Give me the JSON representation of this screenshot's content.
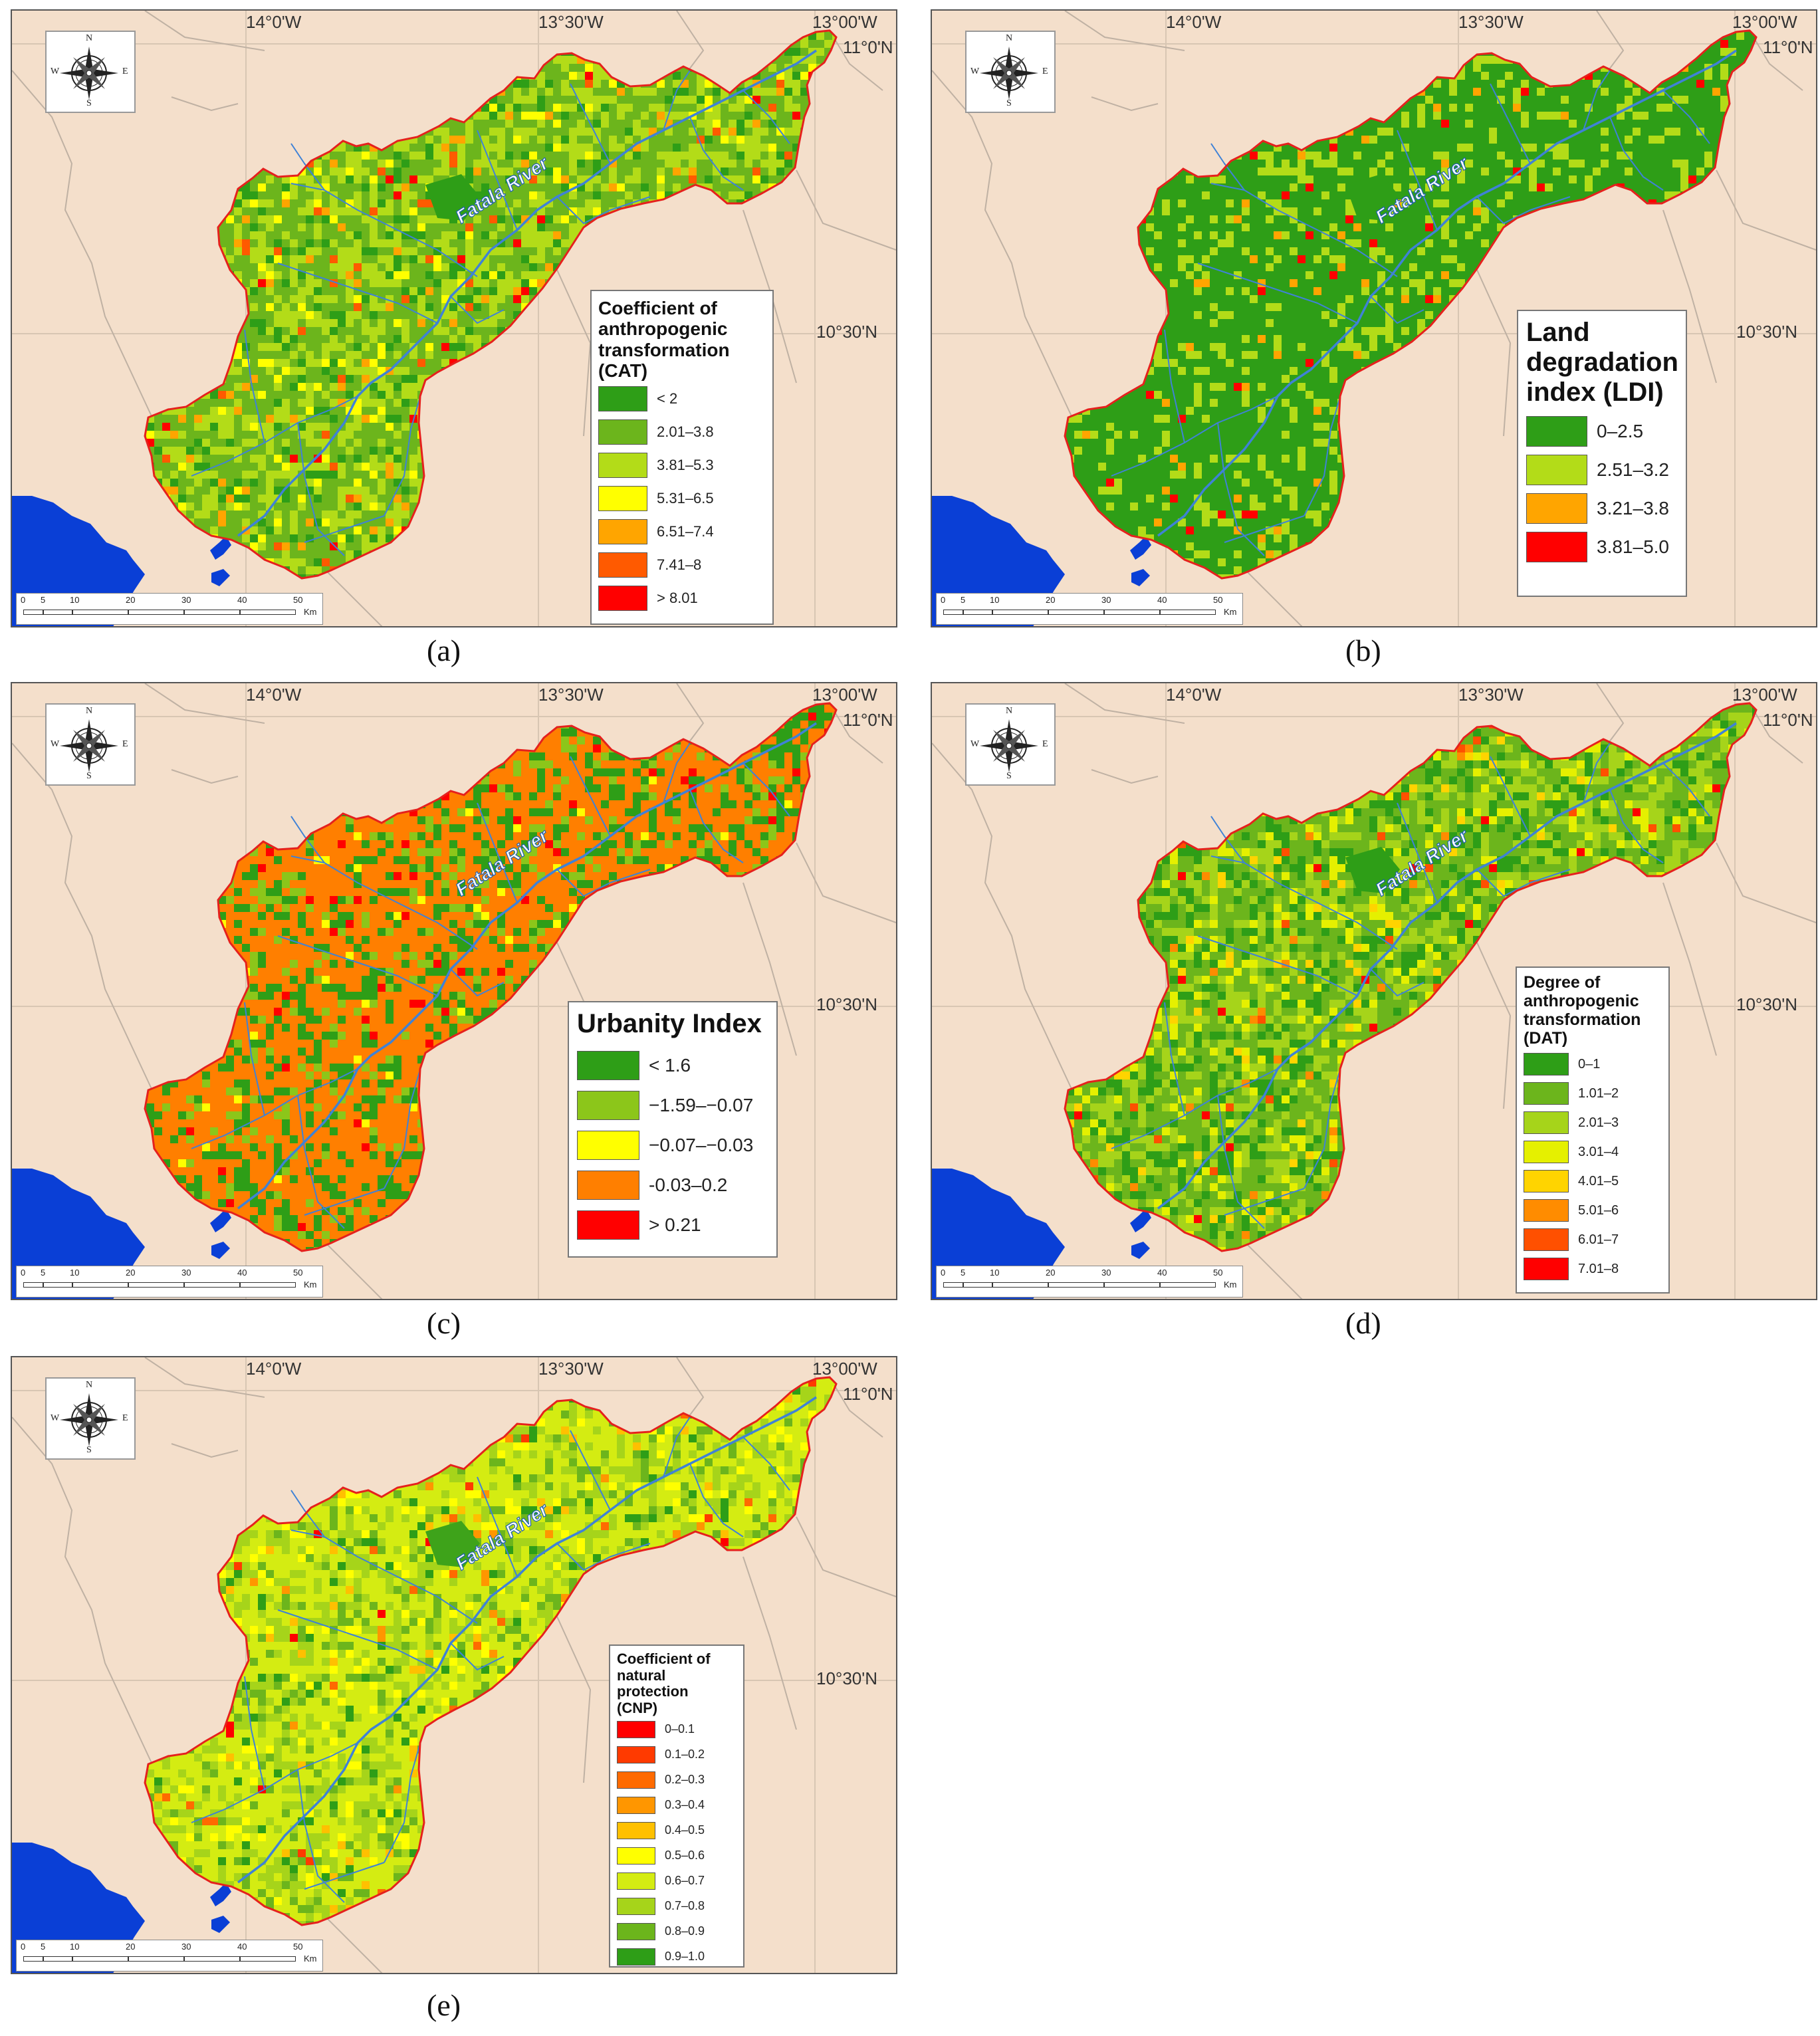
{
  "coords": {
    "lon_labels": [
      "14°0'W",
      "13°30'W",
      "13°00'W"
    ],
    "lat_labels": [
      "11°0'N",
      "10°30'N"
    ]
  },
  "compass": {
    "n": "N",
    "s": "S",
    "e": "E",
    "w": "W"
  },
  "river_label": "Fatala River",
  "scale": {
    "ticks": [
      "0",
      "5",
      "10",
      "20",
      "30",
      "40",
      "50"
    ],
    "unit": "Km"
  },
  "colors": {
    "background": "#f4dfcb",
    "sea": "#0a3fd6",
    "boundary": "#e5211d",
    "river": "#3f82d6"
  },
  "panels": [
    {
      "caption": "(a)",
      "legend_title": "Coefficient of\nanthropogenic\ntransformation\n(CAT)",
      "fill": "#86c11f",
      "legend": [
        {
          "label": "< 2",
          "color": "#2e9e17"
        },
        {
          "label": "2.01–3.8",
          "color": "#6cb51c"
        },
        {
          "label": "3.81–5.3",
          "color": "#b3dc18"
        },
        {
          "label": "5.31–6.5",
          "color": "#ffff00"
        },
        {
          "label": "6.51–7.4",
          "color": "#ffa500"
        },
        {
          "label": "7.41–8",
          "color": "#ff5a00"
        },
        {
          "label": "> 8.01",
          "color": "#ff0000"
        }
      ]
    },
    {
      "caption": "(b)",
      "legend_title": "Land\ndegradation\nindex (LDI)",
      "fill": "#2e9e17",
      "legend": [
        {
          "label": "0–2.5",
          "color": "#2e9e17"
        },
        {
          "label": "2.51–3.2",
          "color": "#b3dc18"
        },
        {
          "label": "3.21–3.8",
          "color": "#ffa500"
        },
        {
          "label": "3.81–5.0",
          "color": "#ff0000"
        }
      ]
    },
    {
      "caption": "(c)",
      "legend_title": "Urbanity Index",
      "fill": "#ff7f00",
      "legend": [
        {
          "label": "< 1.6",
          "color": "#2e9e17"
        },
        {
          "label": "−1.59–−0.07",
          "color": "#8cc61a"
        },
        {
          "label": "−0.07–−0.03",
          "color": "#ffff00"
        },
        {
          "label": "-0.03–0.2",
          "color": "#ff7f00"
        },
        {
          "label": "> 0.21",
          "color": "#ff0000"
        }
      ]
    },
    {
      "caption": "(d)",
      "legend_title": "Degree of\nanthropogenic\ntransformation\n(DAT)",
      "fill": "#7cbd20",
      "legend": [
        {
          "label": "0–1",
          "color": "#2e9e17"
        },
        {
          "label": "1.01–2",
          "color": "#6cb51c"
        },
        {
          "label": "2.01–3",
          "color": "#a6d41a"
        },
        {
          "label": "3.01–4",
          "color": "#e5f000"
        },
        {
          "label": "4.01–5",
          "color": "#ffd400"
        },
        {
          "label": "5.01–6",
          "color": "#ff8c00"
        },
        {
          "label": "6.01–7",
          "color": "#ff5000"
        },
        {
          "label": "7.01–8",
          "color": "#ff0000"
        }
      ]
    },
    {
      "caption": "(e)",
      "legend_title": "Coefficient of\nnatural\nprotection\n(CNP)",
      "fill": "#c8e612",
      "legend": [
        {
          "label": "0–0.1",
          "color": "#ff0000"
        },
        {
          "label": "0.1–0.2",
          "color": "#ff3a00"
        },
        {
          "label": "0.2–0.3",
          "color": "#ff6a00"
        },
        {
          "label": "0.3–0.4",
          "color": "#ff9600"
        },
        {
          "label": "0.4–0.5",
          "color": "#ffc000"
        },
        {
          "label": "0.5–0.6",
          "color": "#ffff00"
        },
        {
          "label": "0.6–0.7",
          "color": "#d4ec12"
        },
        {
          "label": "0.7–0.8",
          "color": "#a6d41a"
        },
        {
          "label": "0.8–0.9",
          "color": "#6cb51c"
        },
        {
          "label": "0.9–1.0",
          "color": "#2e9e17"
        }
      ]
    }
  ]
}
